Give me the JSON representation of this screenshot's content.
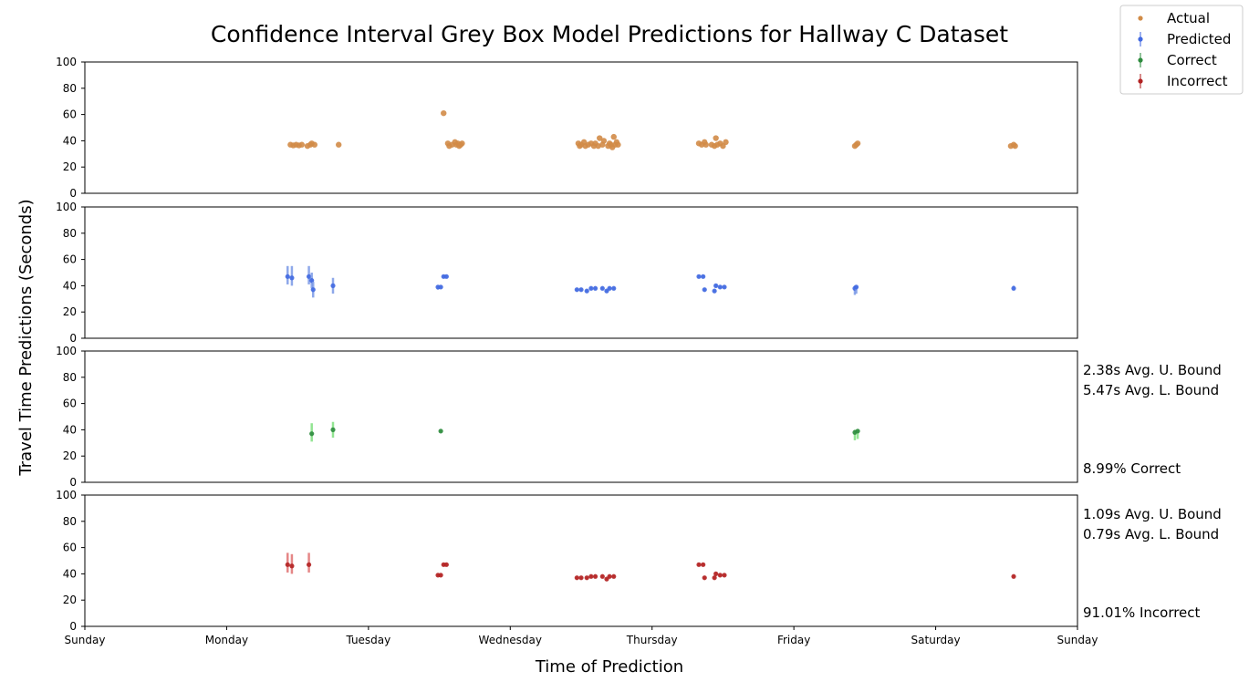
{
  "chart_data": {
    "type": "scatter",
    "title": "Confidence Interval Grey Box Model Predictions for Hallway C Dataset",
    "xlabel": "Time of Prediction",
    "ylabel": "Travel Time Predictions (Seconds)",
    "x_ticks": [
      "Sunday",
      "Monday",
      "Tuesday",
      "Wednesday",
      "Thursday",
      "Friday",
      "Saturday",
      "Sunday"
    ],
    "x_range_days": [
      0,
      7
    ],
    "y_ticks": [
      "0",
      "20",
      "40",
      "60",
      "80",
      "100"
    ],
    "ylim": [
      0,
      100
    ],
    "legend_position": "top-right",
    "legend": [
      {
        "label": "Actual",
        "color": "#d18b47",
        "marker": "dot"
      },
      {
        "label": "Predicted",
        "color": "#4169e1",
        "marker": "errorbar"
      },
      {
        "label": "Correct",
        "color": "#2e8b3e",
        "marker": "errorbar"
      },
      {
        "label": "Incorrect",
        "color": "#b22222",
        "marker": "errorbar"
      }
    ],
    "panels": [
      {
        "name": "Actual",
        "color": "#d18b47",
        "annotations": [],
        "points": [
          {
            "x": 1.45,
            "y": 37
          },
          {
            "x": 1.47,
            "y": 36.5
          },
          {
            "x": 1.49,
            "y": 37
          },
          {
            "x": 1.51,
            "y": 36.5
          },
          {
            "x": 1.53,
            "y": 37
          },
          {
            "x": 1.57,
            "y": 36
          },
          {
            "x": 1.59,
            "y": 37
          },
          {
            "x": 1.6,
            "y": 38
          },
          {
            "x": 1.62,
            "y": 37
          },
          {
            "x": 1.79,
            "y": 37
          },
          {
            "x": 2.56,
            "y": 38
          },
          {
            "x": 2.57,
            "y": 36
          },
          {
            "x": 2.59,
            "y": 37
          },
          {
            "x": 2.61,
            "y": 39
          },
          {
            "x": 2.62,
            "y": 37
          },
          {
            "x": 2.63,
            "y": 38
          },
          {
            "x": 2.64,
            "y": 36
          },
          {
            "x": 2.65,
            "y": 37
          },
          {
            "x": 2.66,
            "y": 38
          },
          {
            "x": 2.53,
            "y": 61
          },
          {
            "x": 3.48,
            "y": 38
          },
          {
            "x": 3.49,
            "y": 36
          },
          {
            "x": 3.5,
            "y": 37
          },
          {
            "x": 3.52,
            "y": 39
          },
          {
            "x": 3.53,
            "y": 36
          },
          {
            "x": 3.55,
            "y": 37
          },
          {
            "x": 3.57,
            "y": 38
          },
          {
            "x": 3.59,
            "y": 36
          },
          {
            "x": 3.6,
            "y": 38
          },
          {
            "x": 3.62,
            "y": 36
          },
          {
            "x": 3.63,
            "y": 42
          },
          {
            "x": 3.65,
            "y": 37
          },
          {
            "x": 3.66,
            "y": 40
          },
          {
            "x": 3.69,
            "y": 36
          },
          {
            "x": 3.7,
            "y": 38
          },
          {
            "x": 3.71,
            "y": 37
          },
          {
            "x": 3.72,
            "y": 35
          },
          {
            "x": 3.73,
            "y": 43
          },
          {
            "x": 3.74,
            "y": 37
          },
          {
            "x": 3.75,
            "y": 39
          },
          {
            "x": 3.76,
            "y": 37
          },
          {
            "x": 4.33,
            "y": 38
          },
          {
            "x": 4.35,
            "y": 37
          },
          {
            "x": 4.37,
            "y": 39
          },
          {
            "x": 4.38,
            "y": 37
          },
          {
            "x": 4.42,
            "y": 37
          },
          {
            "x": 4.44,
            "y": 36
          },
          {
            "x": 4.45,
            "y": 42
          },
          {
            "x": 4.46,
            "y": 37
          },
          {
            "x": 4.48,
            "y": 38
          },
          {
            "x": 4.5,
            "y": 36
          },
          {
            "x": 4.52,
            "y": 39
          },
          {
            "x": 5.43,
            "y": 36
          },
          {
            "x": 5.44,
            "y": 37
          },
          {
            "x": 5.45,
            "y": 38
          },
          {
            "x": 6.53,
            "y": 36
          },
          {
            "x": 6.55,
            "y": 37
          },
          {
            "x": 6.56,
            "y": 36
          }
        ]
      },
      {
        "name": "Predicted",
        "color": "#4169e1",
        "err_color": "#7a99e6",
        "annotations": [],
        "points": [
          {
            "x": 1.43,
            "y": 47,
            "lo": 41,
            "hi": 55
          },
          {
            "x": 1.46,
            "y": 46,
            "lo": 40,
            "hi": 55
          },
          {
            "x": 1.58,
            "y": 47,
            "lo": 41,
            "hi": 55
          },
          {
            "x": 1.6,
            "y": 44,
            "lo": 38,
            "hi": 50
          },
          {
            "x": 1.61,
            "y": 37,
            "lo": 31,
            "hi": 43
          },
          {
            "x": 1.75,
            "y": 40,
            "lo": 34,
            "hi": 46
          },
          {
            "x": 2.49,
            "y": 39,
            "lo": 37,
            "hi": 40
          },
          {
            "x": 2.51,
            "y": 39,
            "lo": 38,
            "hi": 40
          },
          {
            "x": 2.53,
            "y": 47,
            "lo": 46,
            "hi": 48
          },
          {
            "x": 2.55,
            "y": 47,
            "lo": 46,
            "hi": 48
          },
          {
            "x": 3.47,
            "y": 37,
            "lo": 36,
            "hi": 38
          },
          {
            "x": 3.5,
            "y": 37,
            "lo": 36,
            "hi": 38
          },
          {
            "x": 3.54,
            "y": 36,
            "lo": 35,
            "hi": 37
          },
          {
            "x": 3.57,
            "y": 38,
            "lo": 37,
            "hi": 39
          },
          {
            "x": 3.6,
            "y": 38,
            "lo": 37,
            "hi": 39
          },
          {
            "x": 3.65,
            "y": 38,
            "lo": 37,
            "hi": 39
          },
          {
            "x": 3.68,
            "y": 36,
            "lo": 35,
            "hi": 37
          },
          {
            "x": 3.7,
            "y": 38,
            "lo": 37,
            "hi": 39
          },
          {
            "x": 3.73,
            "y": 38,
            "lo": 37,
            "hi": 39
          },
          {
            "x": 4.33,
            "y": 47,
            "lo": 46,
            "hi": 48
          },
          {
            "x": 4.36,
            "y": 47,
            "lo": 46,
            "hi": 48
          },
          {
            "x": 4.37,
            "y": 37,
            "lo": 36,
            "hi": 38
          },
          {
            "x": 4.44,
            "y": 36,
            "lo": 35,
            "hi": 37
          },
          {
            "x": 4.45,
            "y": 40,
            "lo": 39,
            "hi": 41
          },
          {
            "x": 4.48,
            "y": 39,
            "lo": 38,
            "hi": 40
          },
          {
            "x": 4.51,
            "y": 39,
            "lo": 38,
            "hi": 40
          },
          {
            "x": 5.43,
            "y": 38,
            "lo": 33,
            "hi": 40
          },
          {
            "x": 5.44,
            "y": 39,
            "lo": 34,
            "hi": 40
          },
          {
            "x": 6.55,
            "y": 38,
            "lo": 37,
            "hi": 40
          }
        ]
      },
      {
        "name": "Correct",
        "color": "#2e8b3e",
        "err_color": "#7fe07f",
        "annotations": [
          "2.38s Avg. U. Bound",
          "5.47s Avg. L. Bound",
          "8.99% Correct"
        ],
        "points": [
          {
            "x": 1.6,
            "y": 37,
            "lo": 31,
            "hi": 45
          },
          {
            "x": 1.75,
            "y": 40,
            "lo": 34,
            "hi": 46
          },
          {
            "x": 2.51,
            "y": 39,
            "lo": 38,
            "hi": 40
          },
          {
            "x": 5.43,
            "y": 38,
            "lo": 32,
            "hi": 40
          },
          {
            "x": 5.45,
            "y": 39,
            "lo": 33,
            "hi": 40
          }
        ]
      },
      {
        "name": "Incorrect",
        "color": "#b22222",
        "err_color": "#e07272",
        "annotations": [
          "1.09s Avg. U. Bound",
          "0.79s Avg. L. Bound",
          "91.01% Incorrect"
        ],
        "points": [
          {
            "x": 1.43,
            "y": 47,
            "lo": 41,
            "hi": 56
          },
          {
            "x": 1.46,
            "y": 46,
            "lo": 40,
            "hi": 55
          },
          {
            "x": 1.58,
            "y": 47,
            "lo": 41,
            "hi": 56
          },
          {
            "x": 2.49,
            "y": 39,
            "lo": 38,
            "hi": 40
          },
          {
            "x": 2.51,
            "y": 39,
            "lo": 38,
            "hi": 40
          },
          {
            "x": 2.53,
            "y": 47,
            "lo": 46,
            "hi": 48
          },
          {
            "x": 2.55,
            "y": 47,
            "lo": 46,
            "hi": 48
          },
          {
            "x": 3.47,
            "y": 37,
            "lo": 36,
            "hi": 38
          },
          {
            "x": 3.5,
            "y": 37,
            "lo": 36,
            "hi": 38
          },
          {
            "x": 3.54,
            "y": 37,
            "lo": 36,
            "hi": 38
          },
          {
            "x": 3.57,
            "y": 38,
            "lo": 37,
            "hi": 39
          },
          {
            "x": 3.6,
            "y": 38,
            "lo": 37,
            "hi": 39
          },
          {
            "x": 3.65,
            "y": 38,
            "lo": 37,
            "hi": 39
          },
          {
            "x": 3.68,
            "y": 36,
            "lo": 35,
            "hi": 37
          },
          {
            "x": 3.7,
            "y": 38,
            "lo": 37,
            "hi": 39
          },
          {
            "x": 3.73,
            "y": 38,
            "lo": 37,
            "hi": 39
          },
          {
            "x": 4.33,
            "y": 47,
            "lo": 46,
            "hi": 48
          },
          {
            "x": 4.36,
            "y": 47,
            "lo": 46,
            "hi": 48
          },
          {
            "x": 4.37,
            "y": 37,
            "lo": 36,
            "hi": 38
          },
          {
            "x": 4.44,
            "y": 37,
            "lo": 36,
            "hi": 38
          },
          {
            "x": 4.45,
            "y": 40,
            "lo": 39,
            "hi": 41
          },
          {
            "x": 4.48,
            "y": 39,
            "lo": 38,
            "hi": 40
          },
          {
            "x": 4.51,
            "y": 39,
            "lo": 38,
            "hi": 40
          },
          {
            "x": 6.55,
            "y": 38,
            "lo": 37,
            "hi": 39
          }
        ]
      }
    ]
  }
}
